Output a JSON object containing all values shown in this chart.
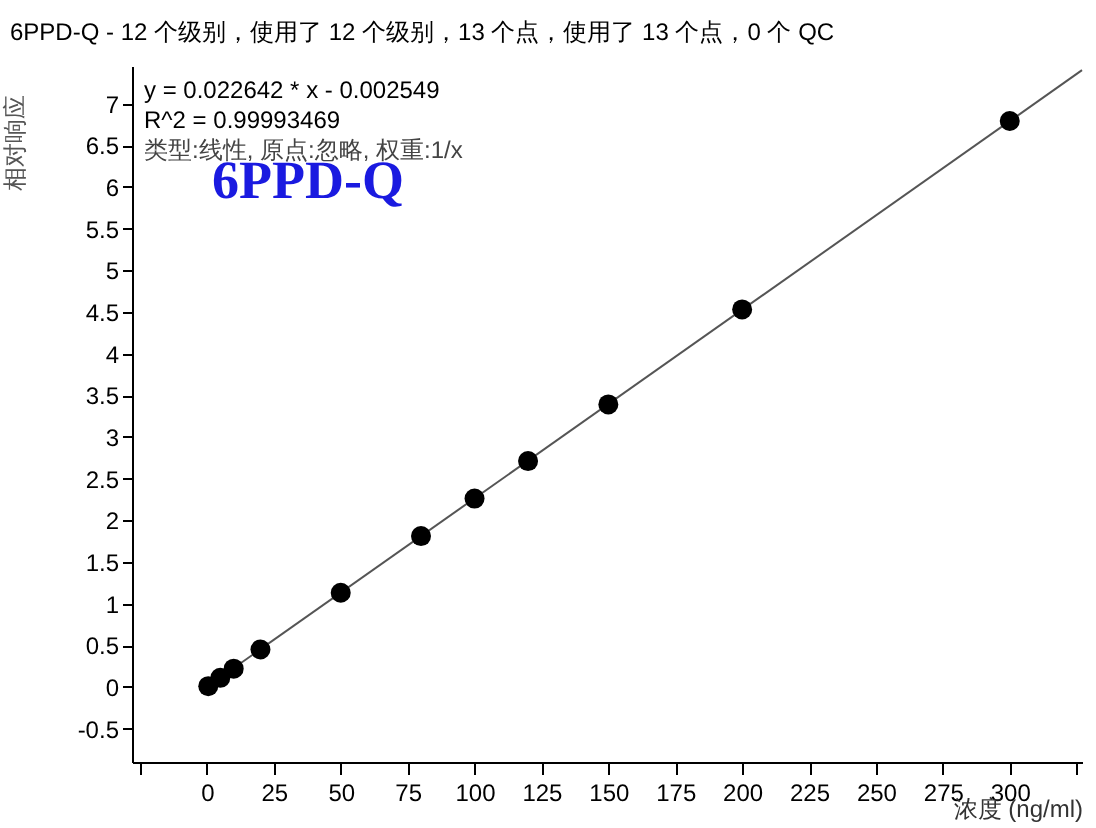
{
  "chart_data": {
    "type": "scatter",
    "title": "6PPD-Q - 12 个级别，使用了 12 个级别，13 个点，使用了 13 个点，0 个 QC",
    "xlabel": "浓度 (ng/ml)",
    "ylabel": "相对响应",
    "annotations": [
      "y = 0.022642 * x  - 0.002549",
      "R^2 = 0.99993469",
      "类型:线性, 原点:忽略, 权重:1/x",
      "6PPD-Q"
    ],
    "marker": "circle",
    "grid": false,
    "xlim": [
      -28,
      327
    ],
    "ylim": [
      -0.9,
      7.45
    ],
    "xticks": [
      {
        "value": -25,
        "label": null
      },
      0,
      25,
      50,
      75,
      100,
      125,
      150,
      175,
      200,
      225,
      250,
      275,
      300,
      {
        "value": 325,
        "label": null
      }
    ],
    "yticks": [
      -0.5,
      0,
      0.5,
      1,
      1.5,
      2,
      2.5,
      3,
      3.5,
      4,
      4.5,
      5,
      5.5,
      6,
      6.5,
      7
    ],
    "x": [
      0.5,
      5,
      10,
      20,
      50,
      80,
      100,
      120,
      150,
      200,
      300
    ],
    "series": [
      {
        "color": "#000000",
        "values": [
          0.01,
          0.11,
          0.22,
          0.45,
          1.13,
          1.81,
          2.26,
          2.71,
          3.39,
          4.53,
          6.79
        ]
      },
      {
        "type": "line",
        "marker": "none",
        "color": "#555555",
        "x": [
          0,
          327
        ],
        "values": [
          0,
          7.4
        ]
      }
    ]
  }
}
